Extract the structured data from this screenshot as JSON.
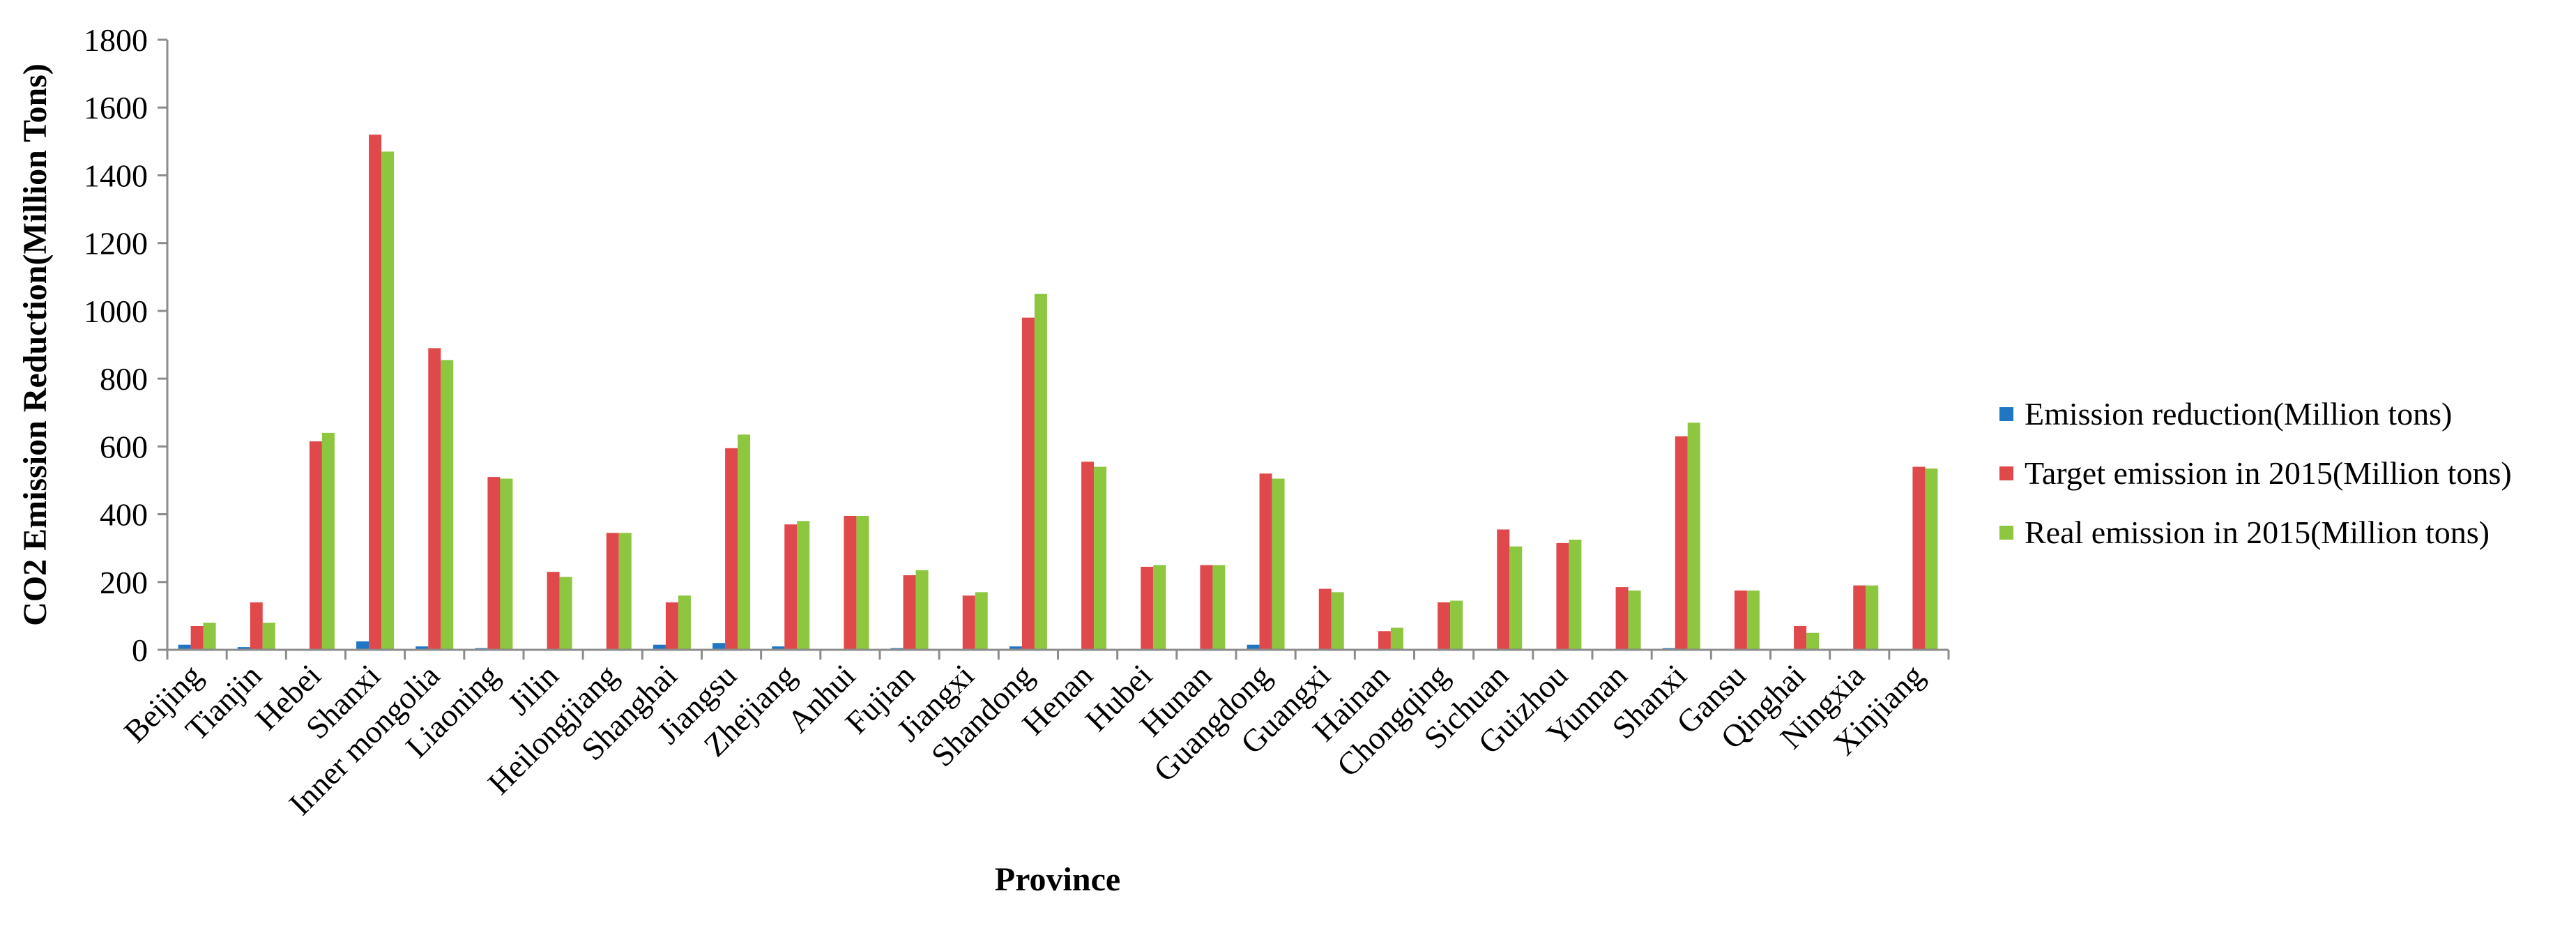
{
  "chart_data": {
    "type": "bar",
    "title": "",
    "xlabel": "Province",
    "ylabel": "CO2 Emission Reduction(Million  Tons)",
    "ylim": [
      0,
      1800
    ],
    "yticks": [
      0,
      200,
      400,
      600,
      800,
      1000,
      1200,
      1400,
      1600,
      1800
    ],
    "grid": false,
    "legend_position": "right",
    "categories": [
      "Beijing",
      "Tianjin",
      "Hebei",
      "Shanxi",
      "Inner mongolia",
      "Liaoning",
      "Jilin",
      "Heilongjiang",
      "Shanghai",
      "Jiangsu",
      "Zhejiang",
      "Anhui",
      "Fujian",
      "Jiangxi",
      "Shandong",
      "Henan",
      "Hubei",
      "Hunan",
      "Guangdong",
      "Guangxi",
      "Hainan",
      "Chongqing",
      "Sichuan",
      "Guizhou",
      "Yunnan",
      "Shanxi",
      "Gansu",
      "Qinghai",
      "Ningxia",
      "Xinjiang"
    ],
    "series": [
      {
        "name": "Emission reduction(Million tons)",
        "color": "#1f77c4",
        "values": [
          15,
          8,
          3,
          25,
          10,
          5,
          0,
          0,
          15,
          20,
          10,
          0,
          5,
          0,
          10,
          0,
          0,
          0,
          15,
          0,
          0,
          0,
          0,
          0,
          0,
          5,
          0,
          0,
          0,
          0
        ]
      },
      {
        "name": "Target emission in 2015(Million tons)",
        "color": "#e0494b",
        "values": [
          70,
          140,
          615,
          1520,
          890,
          510,
          230,
          345,
          140,
          595,
          370,
          395,
          220,
          160,
          980,
          555,
          245,
          250,
          520,
          180,
          55,
          140,
          355,
          315,
          185,
          630,
          175,
          70,
          190,
          540
        ]
      },
      {
        "name": "Real emission in 2015(Million tons)",
        "color": "#8dc63f",
        "values": [
          80,
          80,
          640,
          1470,
          855,
          505,
          215,
          345,
          160,
          635,
          380,
          395,
          235,
          170,
          1050,
          540,
          250,
          250,
          505,
          170,
          65,
          145,
          305,
          325,
          175,
          670,
          175,
          50,
          190,
          535
        ]
      }
    ]
  }
}
